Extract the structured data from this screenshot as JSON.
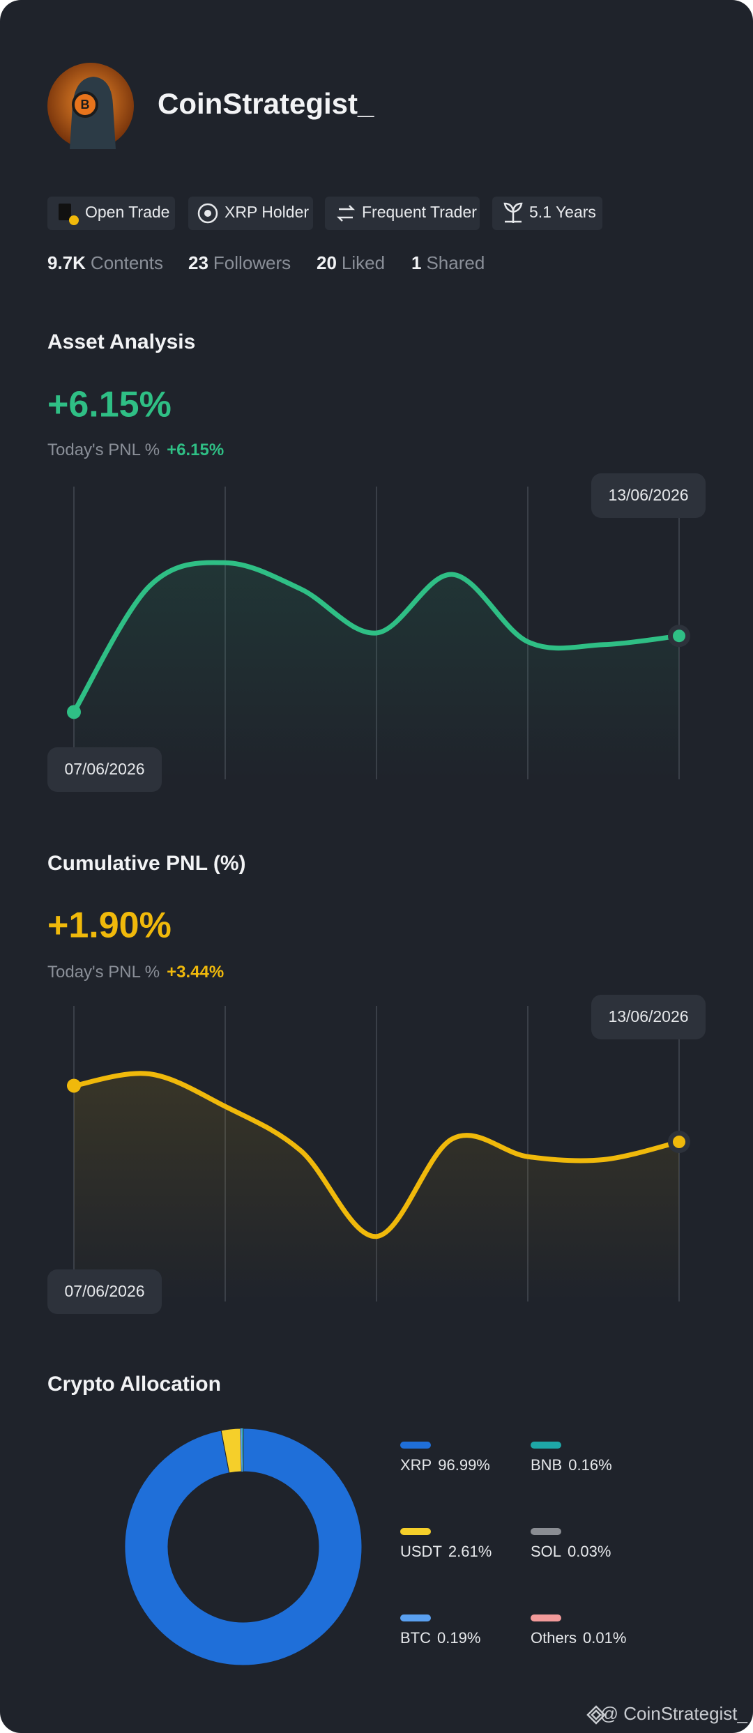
{
  "profile": {
    "name": "CoinStrategist_",
    "badges": [
      "Open Trade",
      "XRP Holder",
      "Frequent Trader",
      "5.1 Years"
    ],
    "stats": [
      {
        "value": "9.7K",
        "label": "Contents"
      },
      {
        "value": "23",
        "label": "Followers"
      },
      {
        "value": "20",
        "label": "Liked"
      },
      {
        "value": "1",
        "label": "Shared"
      }
    ]
  },
  "chart_data": [
    {
      "type": "line",
      "title": "Asset Analysis",
      "headline": "+6.15%",
      "subtitle": "Today's PNL %",
      "subtitle_value": "+6.15%",
      "categories": [
        "07/06/2026",
        null,
        null,
        null,
        null,
        null,
        null,
        null,
        "13/06/2026"
      ],
      "values": [
        2.3,
        6.6,
        7.4,
        6.5,
        5.0,
        7.0,
        4.7,
        4.6,
        4.9
      ],
      "color": "#2fbf85",
      "ylim": [
        0,
        10
      ]
    },
    {
      "type": "line",
      "title": "Cumulative PNL (%)",
      "headline": "+1.90%",
      "subtitle": "Today's PNL %",
      "subtitle_value": "+3.44%",
      "categories": [
        "07/06/2026",
        null,
        null,
        null,
        null,
        null,
        null,
        null,
        "13/06/2026"
      ],
      "values": [
        7.3,
        7.7,
        6.6,
        5.1,
        2.2,
        5.5,
        4.9,
        4.8,
        5.4
      ],
      "color": "#f0b90b",
      "ylim": [
        0,
        10
      ]
    },
    {
      "type": "pie",
      "title": "Crypto Allocation",
      "categories": [
        "XRP",
        "USDT",
        "BTC",
        "BNB",
        "SOL",
        "Others"
      ],
      "values": [
        96.99,
        2.61,
        0.19,
        0.16,
        0.03,
        0.01
      ],
      "value_labels": [
        "96.99%",
        "2.61%",
        "0.19%",
        "0.16%",
        "0.03%",
        "0.01%"
      ],
      "colors": [
        "#1f6fd9",
        "#f5cf2a",
        "#5aa0f0",
        "#1ea7a7",
        "#8a8d93",
        "#f29a9a"
      ]
    }
  ],
  "footer": "@ CoinStrategist_"
}
